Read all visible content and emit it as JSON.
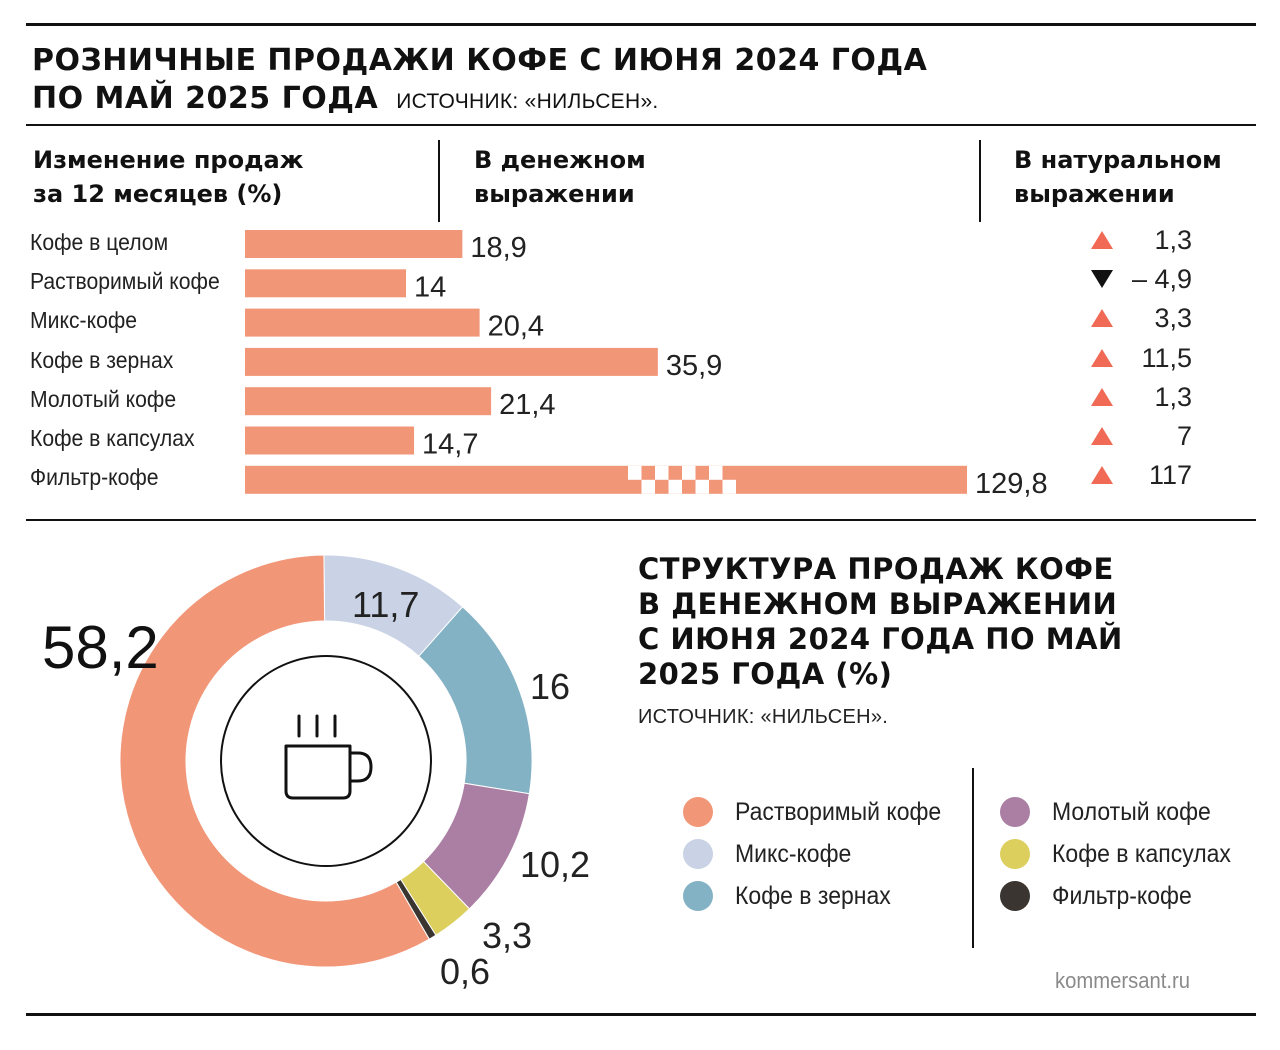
{
  "header": {
    "title_line1": "РОЗНИЧНЫЕ ПРОДАЖИ КОФЕ С ИЮНЯ 2024 ГОДА",
    "title_line2": "ПО МАЙ 2025 ГОДА",
    "source": "ИСТОЧНИК: «НИЛЬСЕН»."
  },
  "table_headers": {
    "col1_line1": "Изменение продаж",
    "col1_line2": "за 12 месяцев (%)",
    "col2_line1": "В денежном",
    "col2_line2": "выражении",
    "col3_line1": "В натуральном",
    "col3_line2": "выражении"
  },
  "colors": {
    "bar": "#f29678",
    "up_arrow": "#f06a55",
    "down_arrow": "#111111",
    "instant": "#f29678",
    "mix": "#c9d3e5",
    "beans": "#84b2c5",
    "ground": "#ab7ea4",
    "capsules": "#dccf5e",
    "filter": "#3a3530"
  },
  "bar_chart": {
    "rows": [
      {
        "label": "Кофе в целом",
        "money_label": "18,9",
        "natural_label": "1,3",
        "direction": "up"
      },
      {
        "label": "Растворимый кофе",
        "money_label": "14",
        "natural_label": "– 4,9",
        "direction": "down"
      },
      {
        "label": "Микс-кофе",
        "money_label": "20,4",
        "natural_label": "3,3",
        "direction": "up"
      },
      {
        "label": "Кофе в зернах",
        "money_label": "35,9",
        "natural_label": "11,5",
        "direction": "up"
      },
      {
        "label": "Молотый кофе",
        "money_label": "21,4",
        "natural_label": "1,3",
        "direction": "up"
      },
      {
        "label": "Кофе в капсулах",
        "money_label": "14,7",
        "natural_label": "7",
        "direction": "up"
      },
      {
        "label": "Фильтр-кофе",
        "money_label": "129,8",
        "natural_label": "117",
        "direction": "up"
      }
    ]
  },
  "donut": {
    "title_line1": "СТРУКТУРА ПРОДАЖ КОФЕ",
    "title_line2": "В ДЕНЕЖНОМ ВЫРАЖЕНИИ",
    "title_line3": "С ИЮНЯ 2024 ГОДА ПО МАЙ",
    "title_line4": "2025 ГОДА (%)",
    "source": "ИСТОЧНИК: «НИЛЬСЕН».",
    "center_icon": "coffee-cup-icon",
    "legend": [
      {
        "label": "Растворимый кофе",
        "color": "#f29678"
      },
      {
        "label": "Микс-кофе",
        "color": "#c9d3e5"
      },
      {
        "label": "Кофе в зернах",
        "color": "#84b2c5"
      },
      {
        "label": "Молотый кофе",
        "color": "#ab7ea4"
      },
      {
        "label": "Кофе в капсулах",
        "color": "#dccf5e"
      },
      {
        "label": "Фильтр-кофе",
        "color": "#3a3530"
      }
    ]
  },
  "footer": {
    "credit": "kommersant.ru"
  },
  "chart_data": [
    {
      "type": "bar",
      "title": "Изменение продаж за 12 месяцев (%)",
      "categories": [
        "Кофе в целом",
        "Растворимый кофе",
        "Микс-кофе",
        "Кофе в зернах",
        "Молотый кофе",
        "Кофе в капсулах",
        "Фильтр-кофе"
      ],
      "series": [
        {
          "name": "В денежном выражении",
          "values": [
            18.9,
            14,
            20.4,
            35.9,
            21.4,
            14.7,
            129.8
          ]
        },
        {
          "name": "В натуральном выражении",
          "values": [
            1.3,
            -4.9,
            3.3,
            11.5,
            1.3,
            7,
            117
          ]
        }
      ],
      "axis_break": true,
      "xlabel": "",
      "ylabel": ""
    },
    {
      "type": "pie",
      "title": "Структура продаж кофе в денежном выражении с июня 2024 года по май 2025 года (%)",
      "categories": [
        "Растворимый кофе",
        "Микс-кофе",
        "Кофе в зернах",
        "Молотый кофе",
        "Кофе в капсулах",
        "Фильтр-кофе"
      ],
      "values": [
        58.2,
        11.7,
        16,
        10.2,
        3.3,
        0.6
      ],
      "labels": [
        "58,2",
        "11,7",
        "16",
        "10,2",
        "3,3",
        "0,6"
      ],
      "donut": true
    }
  ]
}
